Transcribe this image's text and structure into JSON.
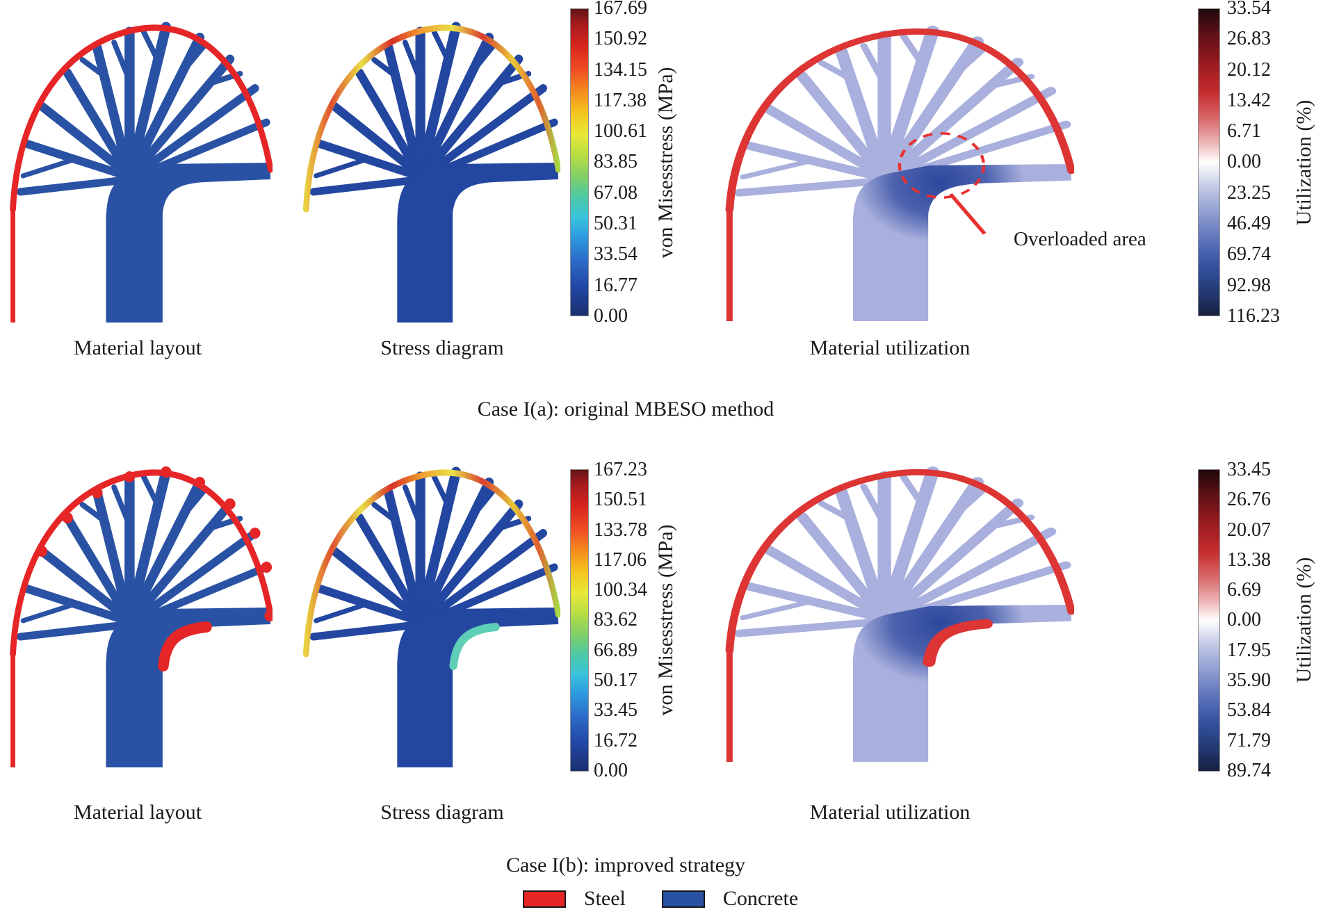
{
  "colors": {
    "steel": "#e62527",
    "concrete": "#2a52a4",
    "stress_body": "#2347a0",
    "util_body": "#a9b0dd",
    "util_dark": "#2e489e",
    "util_rim": "#dd3434",
    "crescent_stress": "#5ecfb6",
    "annotation_red": "#e83030"
  },
  "cases": [
    {
      "title": "Case I(a): original MBESO method",
      "captions": [
        "Material layout",
        "Stress diagram",
        "Material utilization"
      ],
      "stress_colorbar": {
        "axis_label": "von Misesstress (MPa)",
        "ticks": [
          "167.69",
          "150.92",
          "134.15",
          "117.38",
          "100.61",
          "83.85",
          "67.08",
          "50.31",
          "33.54",
          "16.77",
          "0.00"
        ]
      },
      "utilization_colorbar": {
        "axis_label": "Utilization (%)",
        "ticks": [
          "33.54",
          "26.83",
          "20.12",
          "13.42",
          "6.71",
          "0.00",
          "23.25",
          "46.49",
          "69.74",
          "92.98",
          "116.23"
        ]
      },
      "annotation": "Overloaded area"
    },
    {
      "title": "Case I(b): improved strategy",
      "captions": [
        "Material layout",
        "Stress diagram",
        "Material utilization"
      ],
      "stress_colorbar": {
        "axis_label": "von Misesstress (MPa)",
        "ticks": [
          "167.23",
          "150.51",
          "133.78",
          "117.06",
          "100.34",
          "83.62",
          "66.89",
          "50.17",
          "33.45",
          "16.72",
          "0.00"
        ]
      },
      "utilization_colorbar": {
        "axis_label": "Utilization (%)",
        "ticks": [
          "33.45",
          "26.76",
          "20.07",
          "13.38",
          "6.69",
          "0.00",
          "17.95",
          "35.90",
          "53.84",
          "71.79",
          "89.74"
        ]
      }
    }
  ],
  "legend": {
    "items": [
      {
        "label": "Steel"
      },
      {
        "label": "Concrete"
      }
    ]
  },
  "chart_data": [
    {
      "type": "heatmap",
      "title": "Case I(a): original MBESO method",
      "panels": [
        "Material layout",
        "Stress diagram",
        "Material utilization"
      ],
      "stress_scale": {
        "label": "von Misesstress (MPa)",
        "colormap": "jet",
        "ticks": [
          167.69,
          150.92,
          134.15,
          117.38,
          100.61,
          83.85,
          67.08,
          50.31,
          33.54,
          16.77,
          0.0
        ],
        "range": [
          0,
          167.69
        ]
      },
      "utilization_scale": {
        "label": "Utilization (%)",
        "colormap": "red-white-blue",
        "ticks_top_to_bottom": [
          33.54,
          26.83,
          20.12,
          13.42,
          6.71,
          0.0,
          23.25,
          46.49,
          69.74,
          92.98,
          116.23
        ],
        "zero_tick_index": 5
      },
      "annotations": [
        "Overloaded area"
      ],
      "materials": {
        "steel_color": "#e62527",
        "concrete_color": "#2a52a4"
      }
    },
    {
      "type": "heatmap",
      "title": "Case I(b): improved strategy",
      "panels": [
        "Material layout",
        "Stress diagram",
        "Material utilization"
      ],
      "stress_scale": {
        "label": "von Misesstress (MPa)",
        "colormap": "jet",
        "ticks": [
          167.23,
          150.51,
          133.78,
          117.06,
          100.34,
          83.62,
          66.89,
          50.17,
          33.45,
          16.72,
          0.0
        ],
        "range": [
          0,
          167.23
        ]
      },
      "utilization_scale": {
        "label": "Utilization (%)",
        "colormap": "red-white-blue",
        "ticks_top_to_bottom": [
          33.45,
          26.76,
          20.07,
          13.38,
          6.69,
          0.0,
          17.95,
          35.9,
          53.84,
          71.79,
          89.74
        ],
        "zero_tick_index": 5
      },
      "annotations": [],
      "materials": {
        "steel_color": "#e62527",
        "concrete_color": "#2a52a4"
      }
    }
  ]
}
